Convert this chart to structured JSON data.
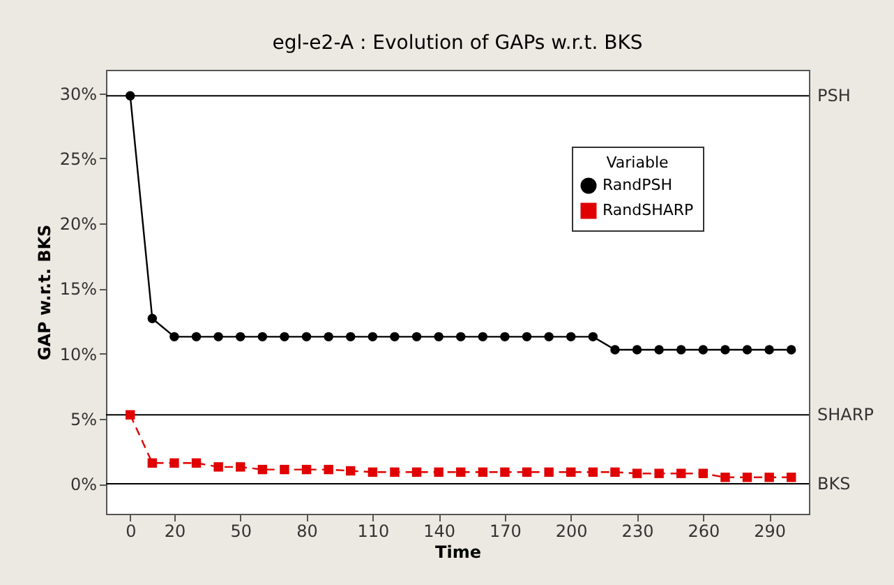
{
  "chart_data": {
    "type": "line",
    "title": "egl-e2-A : Evolution of GAPs w.r.t. BKS",
    "xlabel": "Time",
    "ylabel": "GAP w.r.t. BKS",
    "legend_title": "Variable",
    "legend": "top right",
    "grid": false,
    "x": [
      0,
      10,
      20,
      30,
      40,
      50,
      60,
      70,
      80,
      90,
      100,
      110,
      120,
      130,
      140,
      150,
      160,
      170,
      180,
      190,
      200,
      210,
      220,
      230,
      240,
      250,
      260,
      270,
      280,
      290,
      300
    ],
    "series": [
      {
        "name": "RandPSH",
        "color": "#000000",
        "marker": "circle",
        "line_style": "solid",
        "values": [
          29.8,
          12.7,
          11.3,
          11.3,
          11.3,
          11.3,
          11.3,
          11.3,
          11.3,
          11.3,
          11.3,
          11.3,
          11.3,
          11.3,
          11.3,
          11.3,
          11.3,
          11.3,
          11.3,
          11.3,
          11.3,
          11.3,
          10.3,
          10.3,
          10.3,
          10.3,
          10.3,
          10.3,
          10.3,
          10.3,
          10.3
        ]
      },
      {
        "name": "RandSHARP",
        "color": "#e00000",
        "marker": "square",
        "line_style": "dashed",
        "values": [
          5.3,
          1.6,
          1.6,
          1.6,
          1.3,
          1.3,
          1.1,
          1.1,
          1.1,
          1.1,
          1.0,
          0.9,
          0.9,
          0.9,
          0.9,
          0.9,
          0.9,
          0.9,
          0.9,
          0.9,
          0.9,
          0.9,
          0.9,
          0.8,
          0.8,
          0.8,
          0.8,
          0.5,
          0.5,
          0.5,
          0.5
        ]
      }
    ],
    "xlim": [
      -11,
      308
    ],
    "xticks": [
      0,
      20,
      50,
      80,
      110,
      140,
      170,
      200,
      230,
      260,
      290
    ],
    "ylim": [
      -2.3,
      31.8
    ],
    "yticks": [
      {
        "value": 0,
        "label": "0%"
      },
      {
        "value": 5,
        "label": "5%"
      },
      {
        "value": 10,
        "label": "10%"
      },
      {
        "value": 15,
        "label": "15%"
      },
      {
        "value": 20,
        "label": "20%"
      },
      {
        "value": 25,
        "label": "25%"
      },
      {
        "value": 30,
        "label": "30%"
      }
    ],
    "ref_lines": [
      {
        "axis": "y",
        "value": 29.8,
        "label": "PSH",
        "color": "#000000"
      },
      {
        "axis": "y",
        "value": 5.3,
        "label": "SHARP",
        "color": "#000000"
      },
      {
        "axis": "y",
        "value": 0,
        "label": "BKS",
        "color": "#000000"
      }
    ]
  }
}
